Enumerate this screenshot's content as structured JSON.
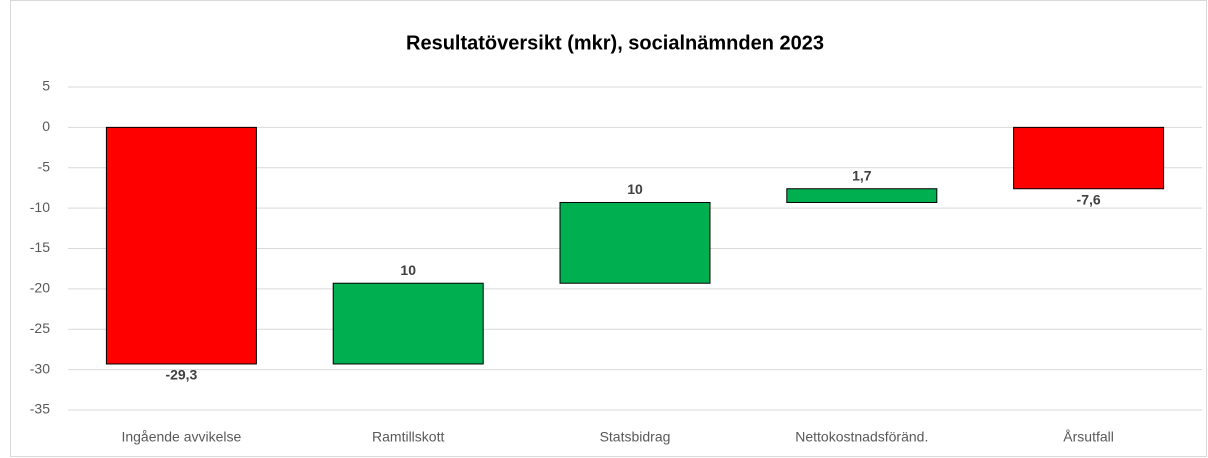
{
  "chart_data": {
    "type": "waterfall",
    "title": "Resultatöversikt (mkr), socialnämnden 2023",
    "categories": [
      "Ingående avvikelse",
      "Ramtillskott",
      "Statsbidrag",
      "Nettokostnadsföränd.",
      "Årsutfall"
    ],
    "values": [
      -29.3,
      10,
      10,
      1.7,
      -7.6
    ],
    "value_labels": [
      "-29,3",
      "10",
      "10",
      "1,7",
      "-7,6"
    ],
    "measure": [
      "absolute",
      "relative",
      "relative",
      "relative",
      "absolute"
    ],
    "colors": [
      "#ff0000",
      "#00b050",
      "#00b050",
      "#00b050",
      "#ff0000"
    ],
    "ylim": [
      -35,
      5
    ],
    "yticks": [
      -35,
      -30,
      -25,
      -20,
      -15,
      -10,
      -5,
      0,
      5
    ],
    "grid": true
  }
}
